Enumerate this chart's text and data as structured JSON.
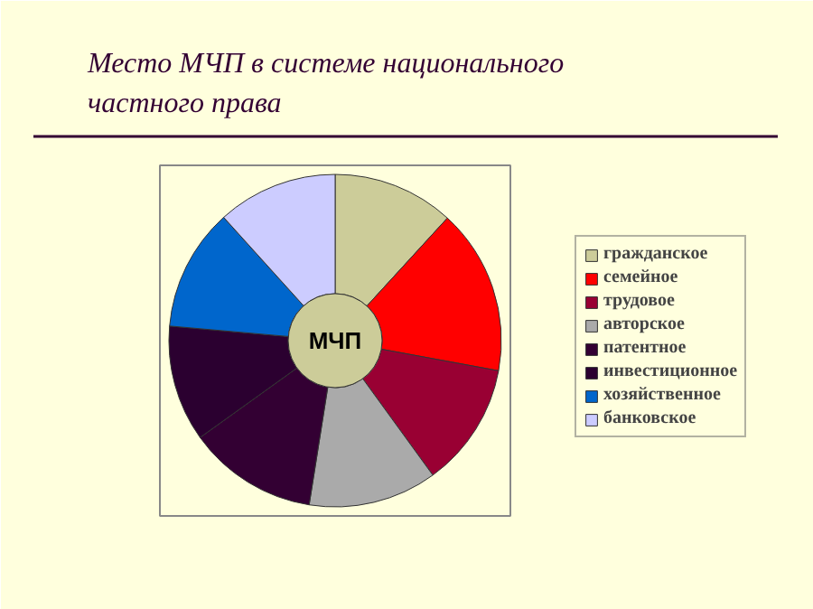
{
  "chart_data": {
    "type": "donut",
    "title": "Место МЧП в системе национального\nчастного права",
    "categories": [
      "гражданское",
      "семейное",
      "трудовое",
      "авторское",
      "патентное",
      "инвестиционное",
      "хозяйственное",
      "банковское"
    ],
    "values": [
      11.8,
      16.1,
      12.1,
      12.5,
      12.6,
      11.3,
      11.9,
      11.7
    ],
    "colors": [
      "#cccc99",
      "#ff0000",
      "#990033",
      "#aaaaaa",
      "#330033",
      "#2b0030",
      "#0066cc",
      "#ccccff"
    ],
    "annotations": [
      "МЧП"
    ],
    "legend": "right"
  }
}
